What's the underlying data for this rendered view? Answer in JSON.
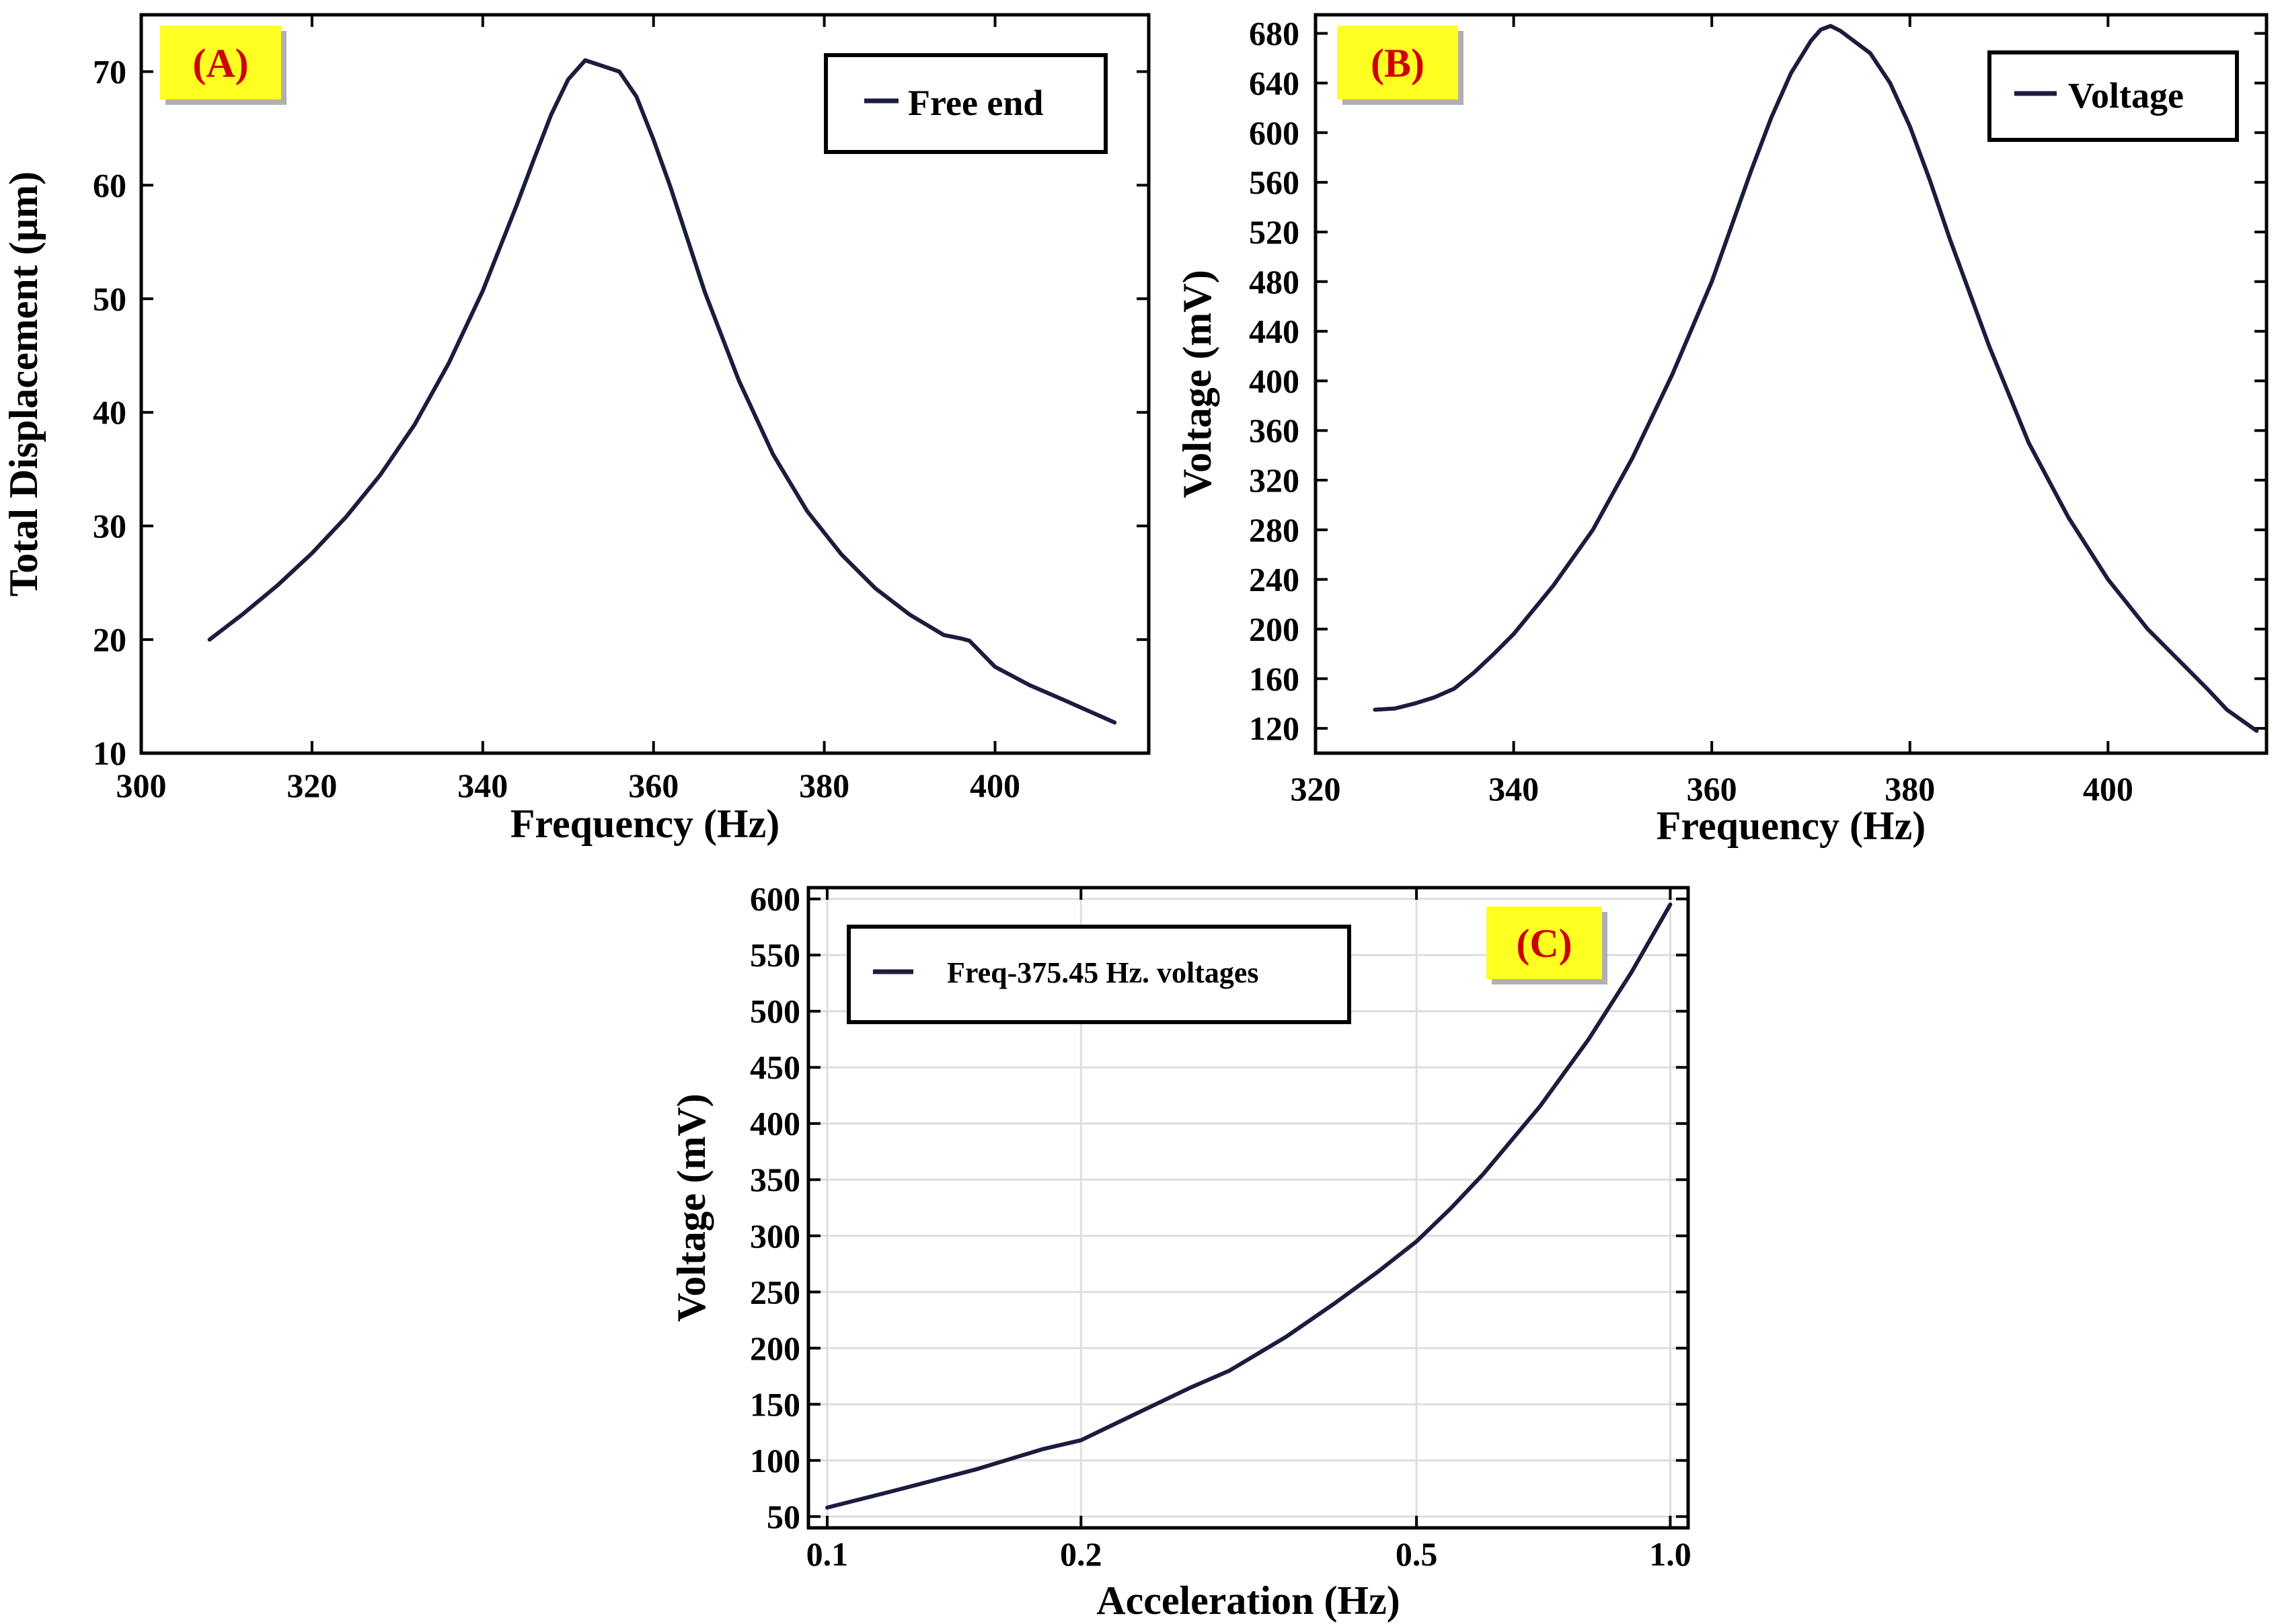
{
  "colors": {
    "line": "#1c1c3e",
    "badge_fill": "#ffff22",
    "badge_text": "#cc0000",
    "grid": "#dddddd",
    "axis": "#000000"
  },
  "chart_data": [
    {
      "type": "line",
      "panel_label": "(A)",
      "title": "",
      "xlabel": "Frequency (Hz)",
      "ylabel": "Total Displacement (µm)",
      "xlim": [
        300,
        418
      ],
      "ylim": [
        10,
        75
      ],
      "xticks": [
        300,
        320,
        340,
        360,
        380,
        400
      ],
      "xtick_labels": [
        "300",
        "320",
        "340",
        "360",
        "380",
        "400"
      ],
      "yticks": [
        10,
        20,
        30,
        40,
        50,
        60,
        70
      ],
      "ytick_labels": [
        "10",
        "20",
        "30",
        "40",
        "50",
        "60",
        "70"
      ],
      "grid": false,
      "legend": {
        "position": "top-right",
        "entries": [
          "Free end"
        ]
      },
      "series": [
        {
          "name": "Free end",
          "x": [
            308,
            312,
            316,
            320,
            324,
            328,
            332,
            336,
            340,
            344,
            346,
            348,
            350,
            352,
            354,
            356,
            358,
            360,
            362,
            364,
            366,
            370,
            374,
            378,
            382,
            386,
            390,
            394,
            396,
            397,
            400,
            404,
            408,
            414
          ],
          "y": [
            20,
            22.3,
            24.8,
            27.6,
            30.8,
            34.5,
            38.9,
            44.3,
            50.7,
            58.3,
            62.3,
            66.2,
            69.3,
            71.0,
            70.5,
            70.0,
            67.8,
            64.0,
            59.8,
            55.2,
            50.6,
            42.8,
            36.3,
            31.3,
            27.5,
            24.5,
            22.2,
            20.4,
            20.1,
            19.9,
            17.6,
            16.0,
            14.7,
            12.7
          ]
        }
      ]
    },
    {
      "type": "line",
      "panel_label": "(B)",
      "title": "",
      "xlabel": "Frequency (Hz)",
      "ylabel": "Voltage (mV)",
      "xlim": [
        320,
        416
      ],
      "ylim": [
        100,
        695
      ],
      "xticks": [
        320,
        340,
        360,
        380,
        400
      ],
      "xtick_labels": [
        "320",
        "340",
        "360",
        "380",
        "400"
      ],
      "yticks": [
        120,
        160,
        200,
        240,
        280,
        320,
        360,
        400,
        440,
        480,
        520,
        560,
        600,
        640,
        680
      ],
      "ytick_labels": [
        "120",
        "160",
        "200",
        "240",
        "280",
        "320",
        "360",
        "400",
        "440",
        "480",
        "520",
        "560",
        "600",
        "640",
        "680"
      ],
      "grid": false,
      "legend": {
        "position": "top-right",
        "entries": [
          "Voltage"
        ]
      },
      "series": [
        {
          "name": "Voltage",
          "x": [
            326,
            328,
            330,
            332,
            334,
            336,
            338,
            340,
            344,
            348,
            352,
            356,
            360,
            364,
            366,
            368,
            370,
            371,
            372,
            373,
            374,
            376,
            378,
            380,
            382,
            384,
            388,
            392,
            396,
            400,
            404,
            408,
            410,
            412,
            415
          ],
          "y": [
            135,
            136,
            140,
            145,
            152,
            165,
            180,
            196,
            235,
            280,
            338,
            405,
            480,
            570,
            612,
            648,
            674,
            683,
            686,
            682,
            676,
            664,
            640,
            605,
            562,
            515,
            428,
            350,
            290,
            240,
            200,
            168,
            152,
            135,
            118
          ]
        }
      ]
    },
    {
      "type": "line",
      "panel_label": "(C)",
      "title": "",
      "xlabel": "Acceleration (Hz)",
      "ylabel": "Voltage (mV)",
      "xscale": "log",
      "xlim": [
        0.095,
        1.05
      ],
      "ylim": [
        40,
        610
      ],
      "xticks": [
        0.1,
        0.2,
        0.5,
        1.0
      ],
      "xtick_labels": [
        "0.1",
        "0.2",
        "0.5",
        "1.0"
      ],
      "yticks": [
        50,
        100,
        150,
        200,
        250,
        300,
        350,
        400,
        450,
        500,
        550,
        600
      ],
      "ytick_labels": [
        "50",
        "100",
        "150",
        "200",
        "250",
        "300",
        "350",
        "400",
        "450",
        "500",
        "550",
        "600"
      ],
      "grid": true,
      "legend": {
        "position": "top-left",
        "entries": [
          "Freq-375.45 Hz. voltages"
        ]
      },
      "series": [
        {
          "name": "Freq-375.45 Hz. voltages",
          "x": [
            0.1,
            0.12,
            0.15,
            0.18,
            0.2,
            0.23,
            0.27,
            0.3,
            0.35,
            0.4,
            0.45,
            0.5,
            0.55,
            0.6,
            0.7,
            0.8,
            0.9,
            1.0
          ],
          "y": [
            58,
            73,
            92,
            110,
            118,
            140,
            165,
            180,
            210,
            240,
            268,
            295,
            325,
            355,
            415,
            475,
            535,
            595
          ]
        }
      ]
    }
  ]
}
